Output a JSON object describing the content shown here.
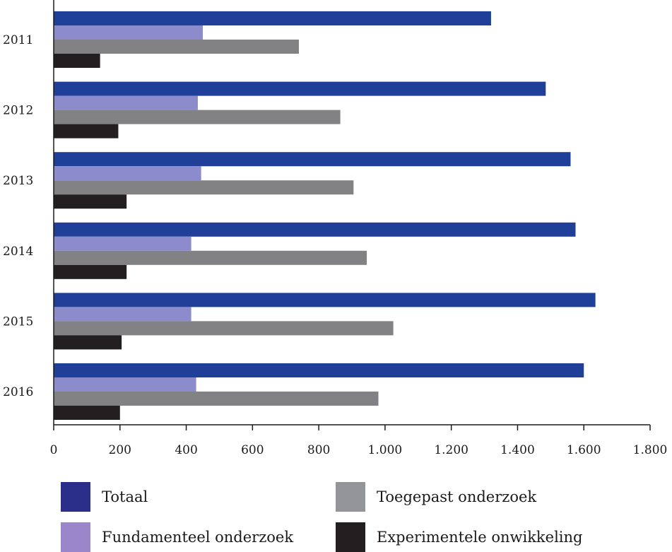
{
  "chart_data": {
    "type": "bar",
    "orientation": "horizontal",
    "categories": [
      "2011",
      "2012",
      "2013",
      "2014",
      "2015",
      "2016"
    ],
    "series": [
      {
        "name": "Totaal",
        "color": "#1f3f99",
        "values": [
          1320,
          1485,
          1560,
          1575,
          1635,
          1600
        ]
      },
      {
        "name": "Fundamenteel onderzoek",
        "color": "#8c8ccc",
        "values": [
          450,
          435,
          445,
          415,
          415,
          430
        ]
      },
      {
        "name": "Toegepast onderzoek",
        "color": "#828285",
        "values": [
          740,
          865,
          905,
          945,
          1025,
          980
        ]
      },
      {
        "name": "Experimentele onwikkeling",
        "color": "#231f20",
        "values": [
          140,
          195,
          220,
          220,
          205,
          200
        ]
      }
    ],
    "xlim": [
      0,
      1800
    ],
    "xticks": [
      0,
      200,
      400,
      600,
      800,
      1000,
      1200,
      1400,
      1600,
      1800
    ],
    "xtick_labels": [
      "0",
      "200",
      "400",
      "600",
      "800",
      "1.000",
      "1.200",
      "1.400",
      "1.600",
      "1.800"
    ],
    "grid": false,
    "legend_position": "bottom"
  },
  "legend": {
    "colors": {
      "totaal": "#2b2f8a",
      "toegepast": "#939598",
      "fundamenteel": "#9b86cc",
      "experimenteel": "#231f20"
    },
    "labels": {
      "totaal": "Totaal",
      "toegepast": "Toegepast onderzoek",
      "fundamenteel": "Fundamenteel onderzoek",
      "experimenteel": "Experimentele onwikkeling"
    }
  }
}
